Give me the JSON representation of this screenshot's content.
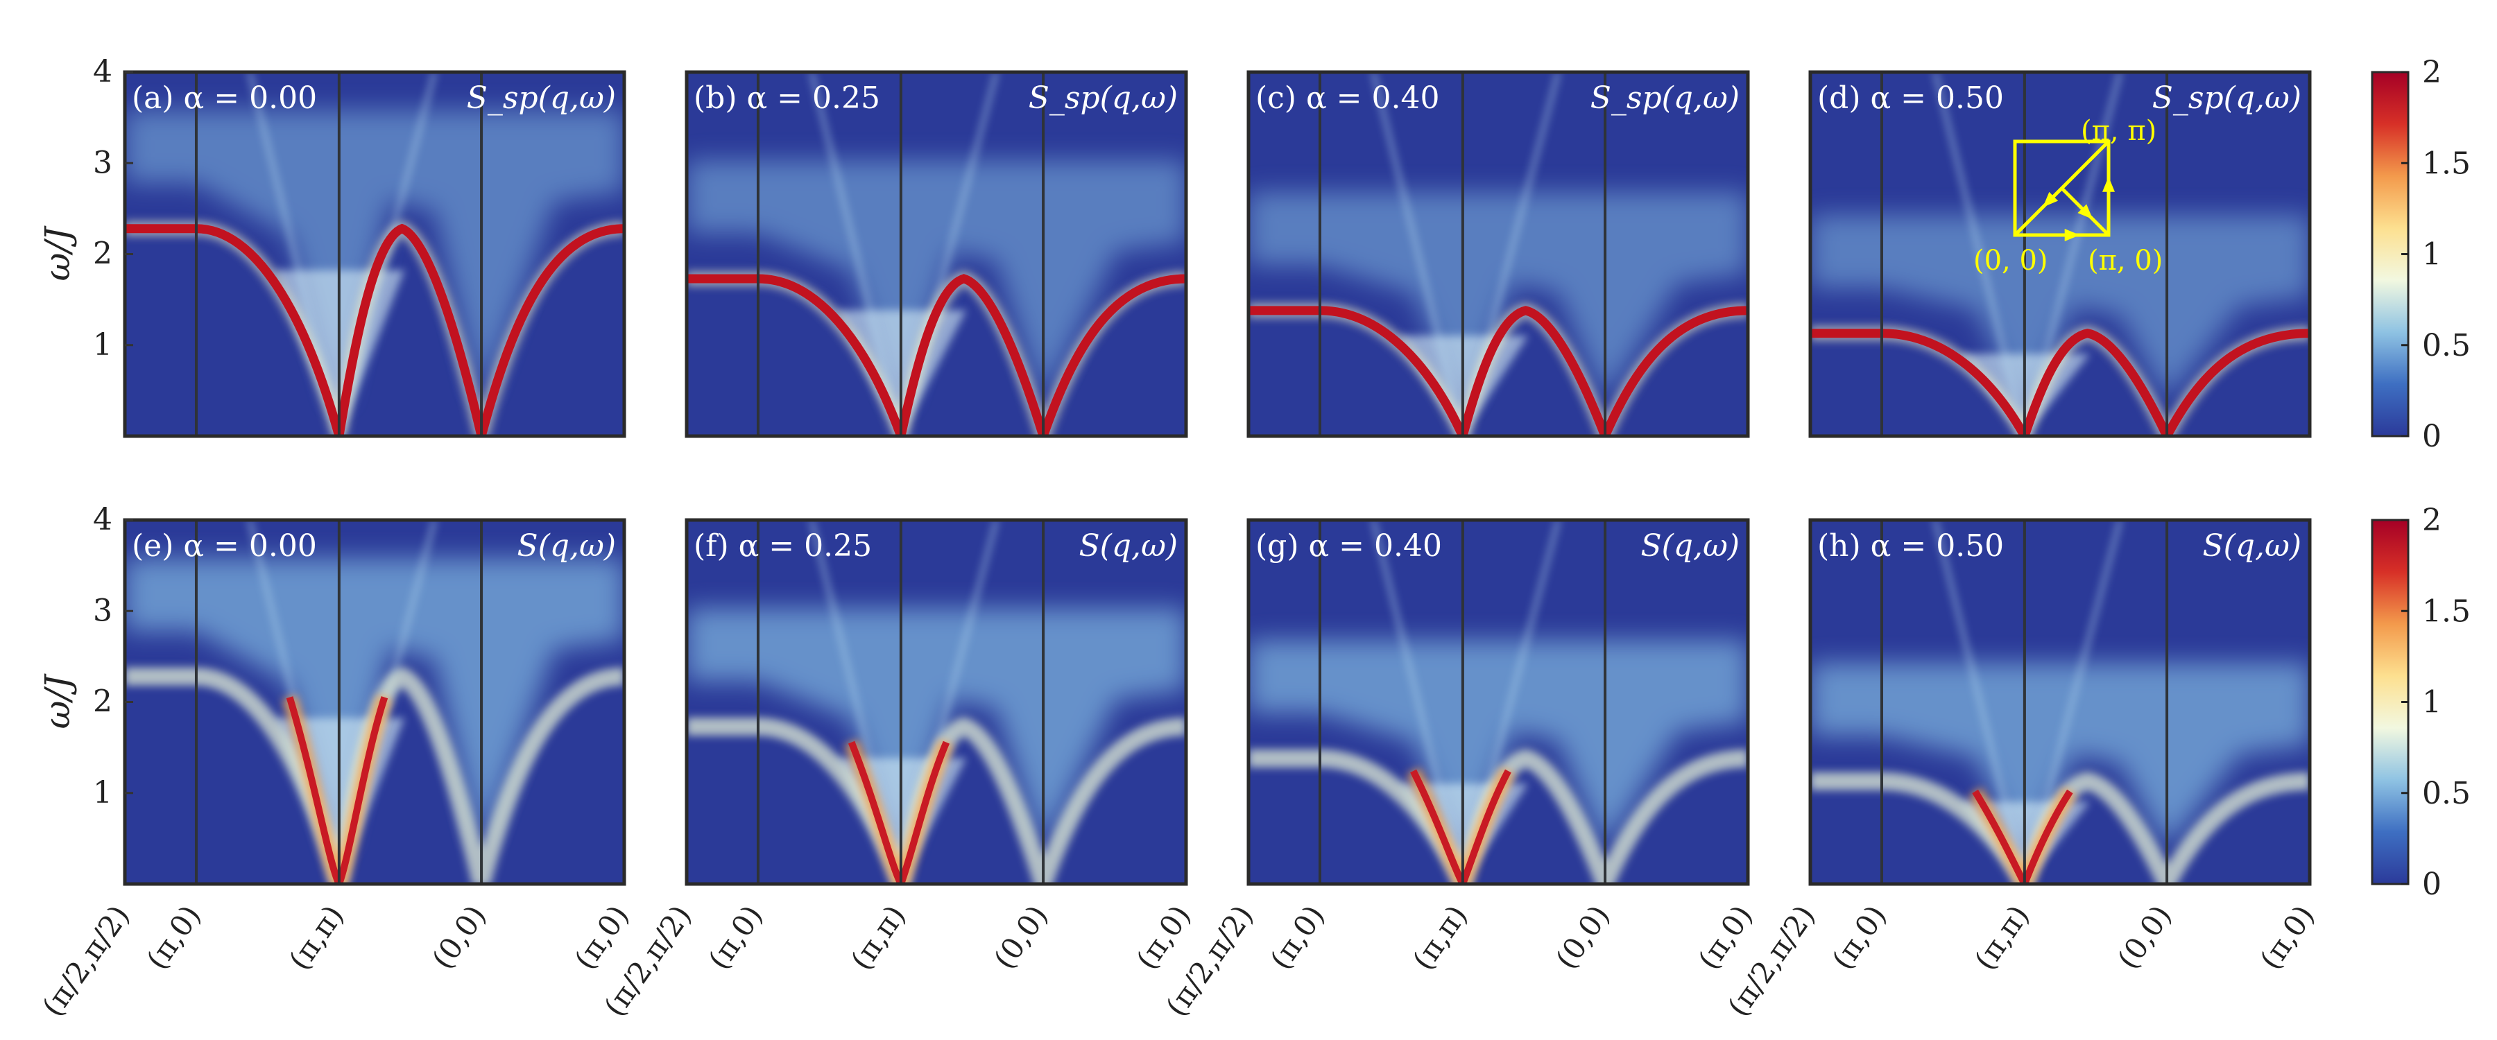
{
  "chart_data": [
    {
      "type": "heatmap",
      "panel": "(a)",
      "alpha_label": "α = 0.00",
      "quantity": "S_sp(q,ω)",
      "alpha": 0.0,
      "row": "spinon",
      "ylabel": "ω/J",
      "yticks": [
        "1",
        "2",
        "3",
        "4"
      ],
      "ylim": [
        0,
        4
      ],
      "flat_band": 2.28,
      "x_ticks": [
        "(π/2,π/2)",
        "(π,0)",
        "(π,π)",
        "(0,0)",
        "(π,0)"
      ]
    },
    {
      "type": "heatmap",
      "panel": "(b)",
      "alpha_label": "α = 0.25",
      "quantity": "S_sp(q,ω)",
      "alpha": 0.25,
      "row": "spinon",
      "flat_band": 1.73
    },
    {
      "type": "heatmap",
      "panel": "(c)",
      "alpha_label": "α = 0.40",
      "quantity": "S_sp(q,ω)",
      "alpha": 0.4,
      "row": "spinon",
      "flat_band": 1.38
    },
    {
      "type": "heatmap",
      "panel": "(d)",
      "alpha_label": "α = 0.50",
      "quantity": "S_sp(q,ω)",
      "alpha": 0.5,
      "row": "spinon",
      "flat_band": 1.13
    },
    {
      "type": "heatmap",
      "panel": "(e)",
      "alpha_label": "α = 0.00",
      "quantity": "S(q,ω)",
      "alpha": 0.0,
      "row": "full",
      "ylabel": "ω/J",
      "yticks": [
        "1",
        "2",
        "3",
        "4"
      ],
      "ylim": [
        0,
        4
      ],
      "flat_band": 2.28
    },
    {
      "type": "heatmap",
      "panel": "(f)",
      "alpha_label": "α = 0.25",
      "quantity": "S(q,ω)",
      "alpha": 0.25,
      "row": "full",
      "flat_band": 1.73
    },
    {
      "type": "heatmap",
      "panel": "(g)",
      "alpha_label": "α = 0.40",
      "quantity": "S(q,ω)",
      "alpha": 0.4,
      "row": "full",
      "flat_band": 1.38
    },
    {
      "type": "heatmap",
      "panel": "(h)",
      "alpha_label": "α = 0.50",
      "quantity": "S(q,ω)",
      "alpha": 0.5,
      "row": "full",
      "flat_band": 1.13
    }
  ],
  "colorbar": {
    "ticks": [
      "0",
      "0.5",
      "1",
      "1.5",
      "2"
    ],
    "range": [
      0,
      2
    ],
    "colors": [
      "#2b3a9a",
      "#3e6fc2",
      "#8fc3e3",
      "#f2f8e0",
      "#fde090",
      "#f39a4c",
      "#d73027",
      "#a50026"
    ]
  },
  "x_tick_labels": [
    "(π/2,π/2)",
    "(π,0)",
    "(π,π)",
    "(0,0)",
    "(π,0)"
  ],
  "inset": {
    "labels": [
      "(π, π)",
      "(0, 0)",
      "(π, 0)"
    ],
    "color": "#ffff00"
  }
}
